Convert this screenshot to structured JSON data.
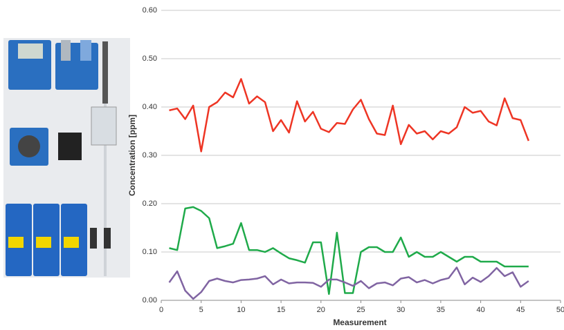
{
  "chart_data": {
    "type": "line",
    "xlabel": "Measurement",
    "ylabel": "Concentration [ppm]",
    "x": [
      1,
      2,
      3,
      4,
      5,
      6,
      7,
      8,
      9,
      10,
      11,
      12,
      13,
      14,
      15,
      16,
      17,
      18,
      19,
      20,
      21,
      22,
      23,
      24,
      25,
      26,
      27,
      28,
      29,
      30,
      31,
      32,
      33,
      34,
      35,
      36,
      37,
      38,
      39,
      40,
      41,
      42,
      43,
      44,
      45,
      46
    ],
    "series": [
      {
        "color": "#ee3524",
        "values": [
          0.393,
          0.397,
          0.375,
          0.403,
          0.308,
          0.4,
          0.41,
          0.43,
          0.42,
          0.458,
          0.407,
          0.422,
          0.41,
          0.35,
          0.373,
          0.347,
          0.412,
          0.37,
          0.39,
          0.355,
          0.348,
          0.367,
          0.365,
          0.395,
          0.415,
          0.375,
          0.345,
          0.342,
          0.403,
          0.323,
          0.363,
          0.345,
          0.35,
          0.333,
          0.35,
          0.345,
          0.358,
          0.4,
          0.388,
          0.392,
          0.37,
          0.362,
          0.418,
          0.377,
          0.373,
          0.33
        ]
      },
      {
        "color": "#1faa4a",
        "values": [
          0.108,
          0.104,
          0.19,
          0.193,
          0.185,
          0.17,
          0.108,
          0.112,
          0.117,
          0.16,
          0.104,
          0.104,
          0.1,
          0.108,
          0.097,
          0.087,
          0.083,
          0.078,
          0.12,
          0.12,
          0.013,
          0.14,
          0.015,
          0.015,
          0.1,
          0.11,
          0.11,
          0.1,
          0.1,
          0.13,
          0.09,
          0.1,
          0.09,
          0.09,
          0.1,
          0.09,
          0.08,
          0.09,
          0.09,
          0.08,
          0.08,
          0.08,
          0.07,
          0.07,
          0.07,
          0.07
        ]
      },
      {
        "color": "#8064a2",
        "values": [
          0.037,
          0.06,
          0.02,
          0.003,
          0.017,
          0.04,
          0.045,
          0.04,
          0.037,
          0.042,
          0.043,
          0.045,
          0.05,
          0.033,
          0.043,
          0.035,
          0.037,
          0.037,
          0.036,
          0.028,
          0.043,
          0.043,
          0.037,
          0.03,
          0.04,
          0.025,
          0.035,
          0.037,
          0.031,
          0.045,
          0.048,
          0.037,
          0.042,
          0.035,
          0.042,
          0.046,
          0.068,
          0.033,
          0.047,
          0.038,
          0.05,
          0.067,
          0.05,
          0.058,
          0.028,
          0.04
        ]
      }
    ],
    "xlim": [
      0,
      50
    ],
    "xticks": [
      0,
      5,
      10,
      15,
      20,
      25,
      30,
      35,
      40,
      45,
      50
    ],
    "ylim": [
      0,
      0.6
    ],
    "yticks": [
      {
        "value": 0,
        "label": "0.00"
      },
      {
        "value": 0.1,
        "label": "0.10"
      },
      {
        "value": 0.2,
        "label": "0.20"
      },
      {
        "value": 0.3,
        "label": "0.30"
      },
      {
        "value": 0.4,
        "label": "0.40"
      },
      {
        "value": 0.5,
        "label": "0.50"
      },
      {
        "value": 0.6,
        "label": "0.60"
      }
    ],
    "grid": true
  }
}
